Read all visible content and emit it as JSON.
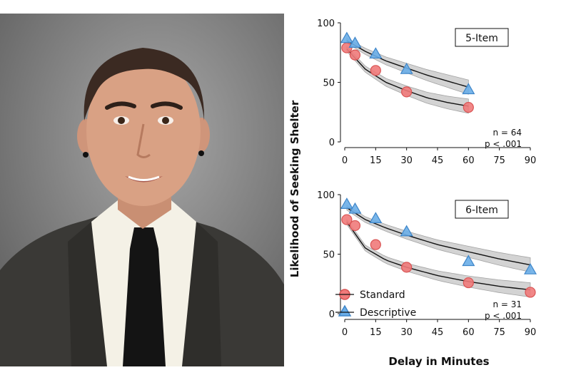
{
  "photo": {
    "description_icon": "portrait-photo",
    "colors": {
      "background": "#9b9b9b",
      "background_dark": "#5f5f5f",
      "skin": "#d9a184",
      "hair": "#3b2a22",
      "shirt": "#f4f1e6",
      "jacket": "#3a3936",
      "tie": "#141414"
    }
  },
  "figure": {
    "ylabel": "Likelihood of Seeking Shelter",
    "xlabel": "Delay in Minutes",
    "legend": {
      "standard": "Standard",
      "descriptive": "Descriptive"
    },
    "colors": {
      "standard_fill": "#f07a7a",
      "standard_stroke": "#d95454",
      "descriptive_fill": "#6aaee8",
      "descriptive_stroke": "#3f86c9",
      "band": "#cfcfcf",
      "curve": "#111111"
    }
  },
  "chart_data": [
    {
      "type": "scatter",
      "title": "5-Item",
      "xlabel": "Delay in Minutes",
      "ylabel": "Likelihood of Seeking Shelter",
      "xlim": [
        0,
        90
      ],
      "ylim": [
        0,
        100
      ],
      "xticks": [
        0,
        15,
        30,
        45,
        60,
        75,
        90
      ],
      "yticks": [
        0,
        50,
        100
      ],
      "annotation_n": "n = 64",
      "annotation_p": "p < .001",
      "series": [
        {
          "name": "Standard",
          "marker": "circle",
          "x": [
            1,
            5,
            15,
            30,
            60
          ],
          "y": [
            79,
            73,
            60,
            42,
            29
          ],
          "fit_x": [
            1,
            10,
            20,
            30,
            40,
            50,
            60
          ],
          "fit_y": [
            78,
            61,
            50,
            43,
            37,
            33,
            30
          ]
        },
        {
          "name": "Descriptive",
          "marker": "triangle",
          "x": [
            1,
            5,
            15,
            30,
            60
          ],
          "y": [
            87,
            83,
            74,
            61,
            44
          ],
          "fit_x": [
            1,
            10,
            20,
            30,
            40,
            50,
            60
          ],
          "fit_y": [
            85,
            76,
            68,
            62,
            56,
            51,
            46
          ]
        }
      ]
    },
    {
      "type": "scatter",
      "title": "6-Item",
      "xlabel": "Delay in Minutes",
      "ylabel": "Likelihood of Seeking Shelter",
      "xlim": [
        0,
        90
      ],
      "ylim": [
        0,
        100
      ],
      "xticks": [
        0,
        15,
        30,
        45,
        60,
        75,
        90
      ],
      "yticks": [
        0,
        50,
        100
      ],
      "annotation_n": "n = 31",
      "annotation_p": "p < .001",
      "series": [
        {
          "name": "Standard",
          "marker": "circle",
          "x": [
            1,
            5,
            15,
            30,
            60,
            90
          ],
          "y": [
            79,
            74,
            58,
            39,
            26,
            18
          ],
          "fit_x": [
            1,
            10,
            20,
            30,
            45,
            60,
            75,
            90
          ],
          "fit_y": [
            77,
            55,
            45,
            39,
            32,
            27,
            23,
            20
          ]
        },
        {
          "name": "Descriptive",
          "marker": "triangle",
          "x": [
            1,
            5,
            15,
            30,
            60,
            90
          ],
          "y": [
            92,
            88,
            80,
            69,
            44,
            37
          ],
          "fit_x": [
            1,
            10,
            20,
            30,
            45,
            60,
            75,
            90
          ],
          "fit_y": [
            89,
            79,
            72,
            66,
            58,
            52,
            46,
            41
          ]
        }
      ]
    }
  ]
}
